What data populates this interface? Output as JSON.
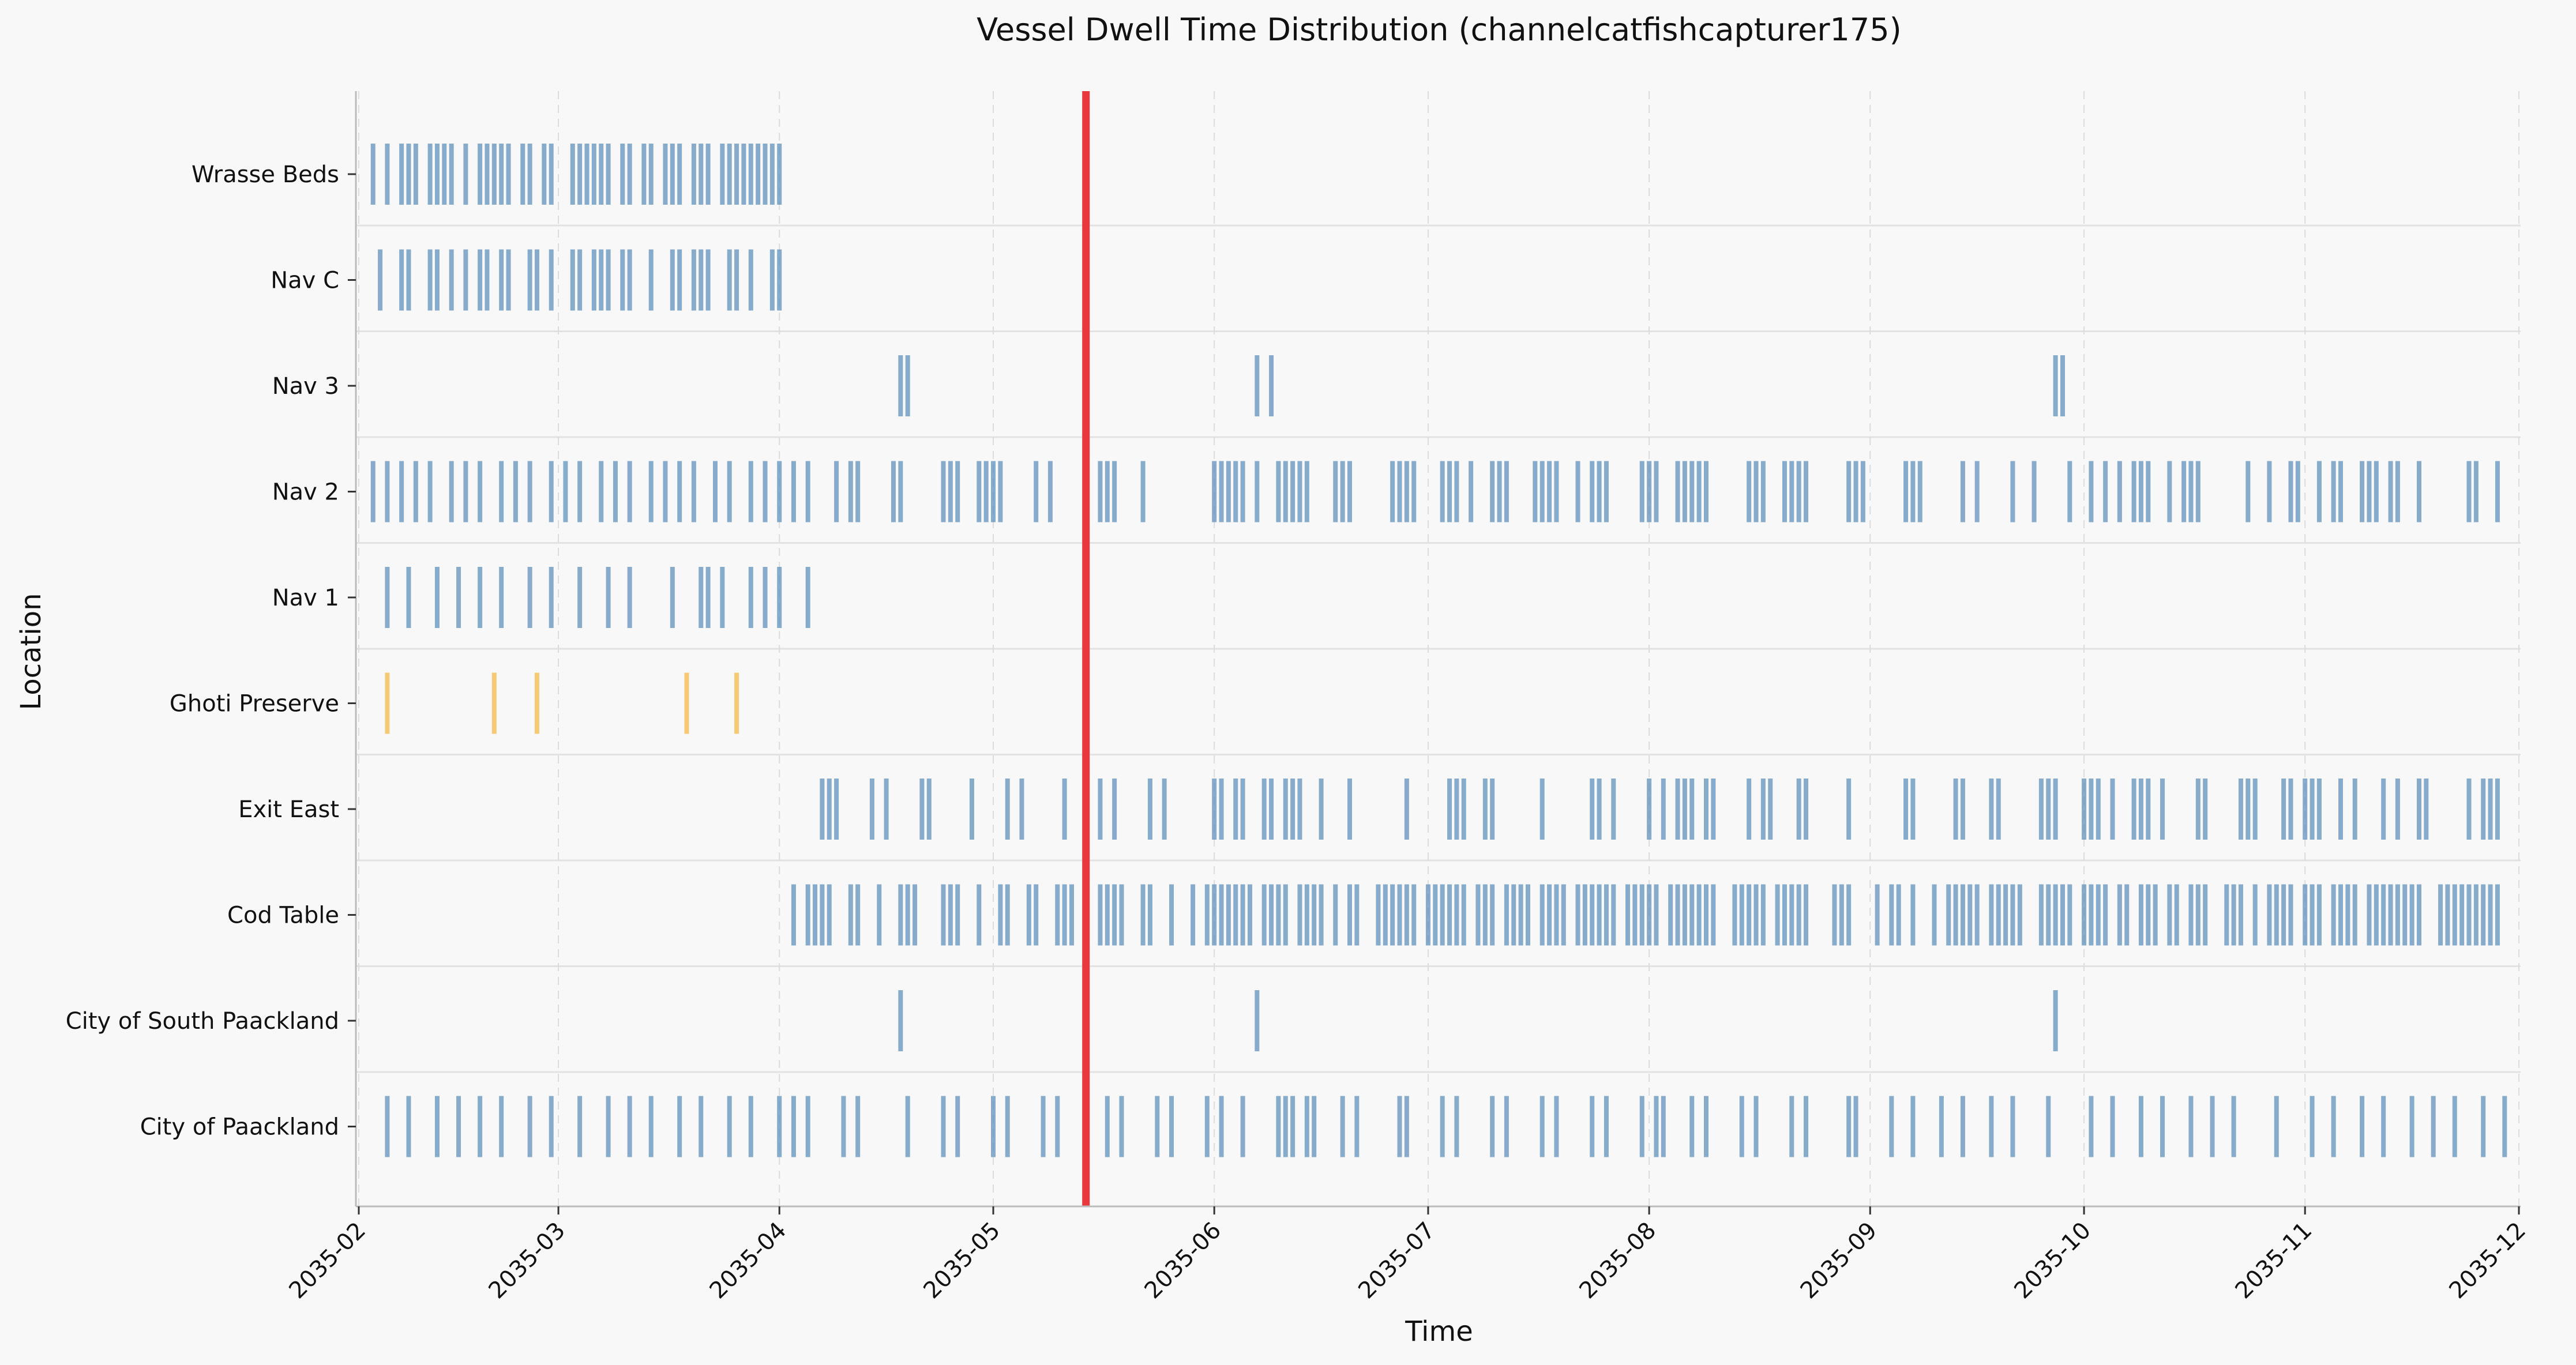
{
  "chart_data": {
    "type": "timeline",
    "title": "Vessel Dwell Time Distribution (channelcatfishcapturer175)",
    "xlabel": "Time",
    "ylabel": "Location",
    "xlim": [
      "2035-02-01",
      "2035-12-01"
    ],
    "x_ticks": [
      "2035-02",
      "2035-03",
      "2035-04",
      "2035-05",
      "2035-06",
      "2035-07",
      "2035-08",
      "2035-09",
      "2035-10",
      "2035-11",
      "2035-12"
    ],
    "grid": "x dashed, light horizontal row separators",
    "reference_line": {
      "date": "2035-05-14",
      "color": "#e8383d"
    },
    "colors": {
      "default": "#5b8db8",
      "highlight": "#f5b942",
      "reference": "#e8383d"
    },
    "categories": [
      "Wrasse Beds",
      "Nav C",
      "Nav 3",
      "Nav 2",
      "Nav 1",
      "Ghoti Preserve",
      "Exit East",
      "Cod Table",
      "City of South Paackland",
      "City of Paackland"
    ],
    "series": [
      {
        "location": "Wrasse Beds",
        "color": "#5b8db8",
        "dates": [
          "2035-02-03",
          "2035-02-05",
          "2035-02-07",
          "2035-02-08",
          "2035-02-09",
          "2035-02-11",
          "2035-02-12",
          "2035-02-13",
          "2035-02-14",
          "2035-02-16",
          "2035-02-18",
          "2035-02-19",
          "2035-02-20",
          "2035-02-21",
          "2035-02-22",
          "2035-02-24",
          "2035-02-25",
          "2035-02-27",
          "2035-02-28",
          "2035-03-03",
          "2035-03-04",
          "2035-03-05",
          "2035-03-06",
          "2035-03-07",
          "2035-03-08",
          "2035-03-10",
          "2035-03-11",
          "2035-03-13",
          "2035-03-14",
          "2035-03-16",
          "2035-03-17",
          "2035-03-18",
          "2035-03-20",
          "2035-03-21",
          "2035-03-22",
          "2035-03-24",
          "2035-03-25",
          "2035-03-26",
          "2035-03-27",
          "2035-03-28",
          "2035-03-29",
          "2035-03-30",
          "2035-03-31",
          "2035-04-01"
        ]
      },
      {
        "location": "Nav C",
        "color": "#5b8db8",
        "dates": [
          "2035-02-04",
          "2035-02-07",
          "2035-02-08",
          "2035-02-11",
          "2035-02-12",
          "2035-02-14",
          "2035-02-16",
          "2035-02-18",
          "2035-02-19",
          "2035-02-21",
          "2035-02-22",
          "2035-02-25",
          "2035-02-26",
          "2035-02-28",
          "2035-03-03",
          "2035-03-04",
          "2035-03-06",
          "2035-03-07",
          "2035-03-08",
          "2035-03-10",
          "2035-03-11",
          "2035-03-14",
          "2035-03-17",
          "2035-03-18",
          "2035-03-20",
          "2035-03-21",
          "2035-03-22",
          "2035-03-25",
          "2035-03-26",
          "2035-03-28",
          "2035-03-31",
          "2035-04-01"
        ]
      },
      {
        "location": "Nav 3",
        "color": "#5b8db8",
        "dates": [
          "2035-04-18",
          "2035-04-19",
          "2035-06-07",
          "2035-06-09",
          "2035-09-27",
          "2035-09-28"
        ]
      },
      {
        "location": "Nav 2",
        "color": "#5b8db8",
        "dates": [
          "2035-02-03",
          "2035-02-05",
          "2035-02-07",
          "2035-02-09",
          "2035-02-11",
          "2035-02-14",
          "2035-02-16",
          "2035-02-18",
          "2035-02-21",
          "2035-02-23",
          "2035-02-25",
          "2035-02-28",
          "2035-03-02",
          "2035-03-04",
          "2035-03-07",
          "2035-03-09",
          "2035-03-11",
          "2035-03-14",
          "2035-03-16",
          "2035-03-18",
          "2035-03-20",
          "2035-03-23",
          "2035-03-25",
          "2035-03-28",
          "2035-03-30",
          "2035-04-01",
          "2035-04-03",
          "2035-04-05",
          "2035-04-09",
          "2035-04-11",
          "2035-04-12",
          "2035-04-17",
          "2035-04-18",
          "2035-04-24",
          "2035-04-25",
          "2035-04-26",
          "2035-04-29",
          "2035-04-30",
          "2035-05-01",
          "2035-05-02",
          "2035-05-07",
          "2035-05-09",
          "2035-05-16",
          "2035-05-17",
          "2035-05-18",
          "2035-05-22",
          "2035-06-01",
          "2035-06-02",
          "2035-06-03",
          "2035-06-04",
          "2035-06-05",
          "2035-06-07",
          "2035-06-10",
          "2035-06-11",
          "2035-06-12",
          "2035-06-13",
          "2035-06-14",
          "2035-06-18",
          "2035-06-19",
          "2035-06-20",
          "2035-06-26",
          "2035-06-27",
          "2035-06-28",
          "2035-06-29",
          "2035-07-03",
          "2035-07-04",
          "2035-07-05",
          "2035-07-07",
          "2035-07-10",
          "2035-07-11",
          "2035-07-12",
          "2035-07-16",
          "2035-07-17",
          "2035-07-18",
          "2035-07-19",
          "2035-07-22",
          "2035-07-24",
          "2035-07-25",
          "2035-07-26",
          "2035-07-31",
          "2035-08-01",
          "2035-08-02",
          "2035-08-05",
          "2035-08-06",
          "2035-08-07",
          "2035-08-08",
          "2035-08-09",
          "2035-08-15",
          "2035-08-16",
          "2035-08-17",
          "2035-08-20",
          "2035-08-21",
          "2035-08-22",
          "2035-08-23",
          "2035-08-29",
          "2035-08-30",
          "2035-08-31",
          "2035-09-06",
          "2035-09-07",
          "2035-09-08",
          "2035-09-14",
          "2035-09-16",
          "2035-09-21",
          "2035-09-24",
          "2035-09-29",
          "2035-10-02",
          "2035-10-04",
          "2035-10-06",
          "2035-10-08",
          "2035-10-09",
          "2035-10-10",
          "2035-10-13",
          "2035-10-15",
          "2035-10-16",
          "2035-10-17",
          "2035-10-24",
          "2035-10-27",
          "2035-10-30",
          "2035-10-31",
          "2035-11-03",
          "2035-11-05",
          "2035-11-06",
          "2035-11-09",
          "2035-11-10",
          "2035-11-11",
          "2035-11-13",
          "2035-11-14",
          "2035-11-17",
          "2035-11-24",
          "2035-11-25",
          "2035-11-28"
        ]
      },
      {
        "location": "Nav 1",
        "color": "#5b8db8",
        "dates": [
          "2035-02-05",
          "2035-02-08",
          "2035-02-12",
          "2035-02-15",
          "2035-02-18",
          "2035-02-21",
          "2035-02-25",
          "2035-02-28",
          "2035-03-04",
          "2035-03-08",
          "2035-03-11",
          "2035-03-17",
          "2035-03-21",
          "2035-03-22",
          "2035-03-24",
          "2035-03-28",
          "2035-03-30",
          "2035-04-01",
          "2035-04-05"
        ]
      },
      {
        "location": "Ghoti Preserve",
        "color": "#f5b942",
        "dates": [
          "2035-02-05",
          "2035-02-20",
          "2035-02-26",
          "2035-03-19",
          "2035-03-26"
        ]
      },
      {
        "location": "Exit East",
        "color": "#5b8db8",
        "dates": [
          "2035-04-07",
          "2035-04-08",
          "2035-04-09",
          "2035-04-14",
          "2035-04-16",
          "2035-04-21",
          "2035-04-22",
          "2035-04-28",
          "2035-05-03",
          "2035-05-05",
          "2035-05-11",
          "2035-05-16",
          "2035-05-18",
          "2035-05-23",
          "2035-05-25",
          "2035-06-01",
          "2035-06-02",
          "2035-06-04",
          "2035-06-05",
          "2035-06-08",
          "2035-06-09",
          "2035-06-11",
          "2035-06-12",
          "2035-06-13",
          "2035-06-16",
          "2035-06-20",
          "2035-06-28",
          "2035-07-04",
          "2035-07-05",
          "2035-07-06",
          "2035-07-09",
          "2035-07-10",
          "2035-07-17",
          "2035-07-24",
          "2035-07-25",
          "2035-07-27",
          "2035-08-01",
          "2035-08-03",
          "2035-08-05",
          "2035-08-06",
          "2035-08-07",
          "2035-08-09",
          "2035-08-10",
          "2035-08-15",
          "2035-08-17",
          "2035-08-18",
          "2035-08-22",
          "2035-08-23",
          "2035-08-29",
          "2035-09-06",
          "2035-09-07",
          "2035-09-13",
          "2035-09-14",
          "2035-09-18",
          "2035-09-19",
          "2035-09-25",
          "2035-09-26",
          "2035-09-27",
          "2035-10-01",
          "2035-10-02",
          "2035-10-03",
          "2035-10-05",
          "2035-10-08",
          "2035-10-09",
          "2035-10-10",
          "2035-10-12",
          "2035-10-17",
          "2035-10-18",
          "2035-10-23",
          "2035-10-24",
          "2035-10-25",
          "2035-10-29",
          "2035-10-30",
          "2035-11-01",
          "2035-11-02",
          "2035-11-03",
          "2035-11-06",
          "2035-11-08",
          "2035-11-12",
          "2035-11-14",
          "2035-11-17",
          "2035-11-18",
          "2035-11-24",
          "2035-11-26",
          "2035-11-27",
          "2035-11-28"
        ]
      },
      {
        "location": "Cod Table",
        "color": "#5b8db8",
        "dates": [
          "2035-04-03",
          "2035-04-05",
          "2035-04-06",
          "2035-04-07",
          "2035-04-08",
          "2035-04-11",
          "2035-04-12",
          "2035-04-15",
          "2035-04-18",
          "2035-04-19",
          "2035-04-20",
          "2035-04-24",
          "2035-04-25",
          "2035-04-26",
          "2035-04-29",
          "2035-05-02",
          "2035-05-03",
          "2035-05-06",
          "2035-05-07",
          "2035-05-10",
          "2035-05-11",
          "2035-05-12",
          "2035-05-16",
          "2035-05-17",
          "2035-05-18",
          "2035-05-19",
          "2035-05-22",
          "2035-05-23",
          "2035-05-26",
          "2035-05-29",
          "2035-05-31",
          "2035-06-01",
          "2035-06-02",
          "2035-06-03",
          "2035-06-04",
          "2035-06-05",
          "2035-06-06",
          "2035-06-08",
          "2035-06-09",
          "2035-06-10",
          "2035-06-11",
          "2035-06-13",
          "2035-06-14",
          "2035-06-15",
          "2035-06-16",
          "2035-06-18",
          "2035-06-20",
          "2035-06-21",
          "2035-06-24",
          "2035-06-25",
          "2035-06-26",
          "2035-06-27",
          "2035-06-28",
          "2035-06-29",
          "2035-07-01",
          "2035-07-02",
          "2035-07-03",
          "2035-07-04",
          "2035-07-05",
          "2035-07-06",
          "2035-07-08",
          "2035-07-09",
          "2035-07-10",
          "2035-07-12",
          "2035-07-13",
          "2035-07-14",
          "2035-07-15",
          "2035-07-17",
          "2035-07-18",
          "2035-07-19",
          "2035-07-20",
          "2035-07-22",
          "2035-07-23",
          "2035-07-24",
          "2035-07-25",
          "2035-07-26",
          "2035-07-27",
          "2035-07-29",
          "2035-07-30",
          "2035-07-31",
          "2035-08-01",
          "2035-08-02",
          "2035-08-04",
          "2035-08-05",
          "2035-08-06",
          "2035-08-07",
          "2035-08-08",
          "2035-08-09",
          "2035-08-10",
          "2035-08-13",
          "2035-08-14",
          "2035-08-15",
          "2035-08-16",
          "2035-08-17",
          "2035-08-19",
          "2035-08-20",
          "2035-08-21",
          "2035-08-22",
          "2035-08-23",
          "2035-08-27",
          "2035-08-28",
          "2035-08-29",
          "2035-09-02",
          "2035-09-04",
          "2035-09-05",
          "2035-09-07",
          "2035-09-10",
          "2035-09-12",
          "2035-09-13",
          "2035-09-14",
          "2035-09-15",
          "2035-09-16",
          "2035-09-18",
          "2035-09-19",
          "2035-09-20",
          "2035-09-21",
          "2035-09-22",
          "2035-09-25",
          "2035-09-26",
          "2035-09-27",
          "2035-09-28",
          "2035-09-29",
          "2035-10-01",
          "2035-10-02",
          "2035-10-03",
          "2035-10-04",
          "2035-10-06",
          "2035-10-07",
          "2035-10-09",
          "2035-10-10",
          "2035-10-11",
          "2035-10-13",
          "2035-10-14",
          "2035-10-16",
          "2035-10-17",
          "2035-10-18",
          "2035-10-21",
          "2035-10-22",
          "2035-10-23",
          "2035-10-25",
          "2035-10-27",
          "2035-10-28",
          "2035-10-29",
          "2035-10-30",
          "2035-11-01",
          "2035-11-02",
          "2035-11-03",
          "2035-11-05",
          "2035-11-06",
          "2035-11-07",
          "2035-11-08",
          "2035-11-10",
          "2035-11-11",
          "2035-11-12",
          "2035-11-13",
          "2035-11-14",
          "2035-11-15",
          "2035-11-16",
          "2035-11-17",
          "2035-11-20",
          "2035-11-21",
          "2035-11-22",
          "2035-11-23",
          "2035-11-24",
          "2035-11-25",
          "2035-11-26",
          "2035-11-27",
          "2035-11-28"
        ]
      },
      {
        "location": "City of South Paackland",
        "color": "#5b8db8",
        "dates": [
          "2035-04-18",
          "2035-06-07",
          "2035-09-27"
        ]
      },
      {
        "location": "City of Paackland",
        "color": "#5b8db8",
        "dates": [
          "2035-02-05",
          "2035-02-08",
          "2035-02-12",
          "2035-02-15",
          "2035-02-18",
          "2035-02-21",
          "2035-02-25",
          "2035-02-28",
          "2035-03-04",
          "2035-03-08",
          "2035-03-11",
          "2035-03-14",
          "2035-03-18",
          "2035-03-21",
          "2035-03-25",
          "2035-03-28",
          "2035-04-01",
          "2035-04-03",
          "2035-04-05",
          "2035-04-10",
          "2035-04-12",
          "2035-04-19",
          "2035-04-24",
          "2035-04-26",
          "2035-05-01",
          "2035-05-03",
          "2035-05-08",
          "2035-05-10",
          "2035-05-17",
          "2035-05-19",
          "2035-05-24",
          "2035-05-26",
          "2035-05-31",
          "2035-06-02",
          "2035-06-05",
          "2035-06-10",
          "2035-06-11",
          "2035-06-12",
          "2035-06-14",
          "2035-06-15",
          "2035-06-19",
          "2035-06-21",
          "2035-06-27",
          "2035-06-28",
          "2035-07-03",
          "2035-07-05",
          "2035-07-10",
          "2035-07-12",
          "2035-07-17",
          "2035-07-19",
          "2035-07-24",
          "2035-07-26",
          "2035-07-31",
          "2035-08-02",
          "2035-08-03",
          "2035-08-07",
          "2035-08-09",
          "2035-08-14",
          "2035-08-16",
          "2035-08-21",
          "2035-08-23",
          "2035-08-29",
          "2035-08-30",
          "2035-09-04",
          "2035-09-07",
          "2035-09-11",
          "2035-09-14",
          "2035-09-18",
          "2035-09-21",
          "2035-09-26",
          "2035-10-02",
          "2035-10-05",
          "2035-10-09",
          "2035-10-12",
          "2035-10-16",
          "2035-10-19",
          "2035-10-22",
          "2035-10-28",
          "2035-11-02",
          "2035-11-05",
          "2035-11-09",
          "2035-11-12",
          "2035-11-16",
          "2035-11-19",
          "2035-11-22",
          "2035-11-26",
          "2035-11-29"
        ]
      }
    ]
  }
}
